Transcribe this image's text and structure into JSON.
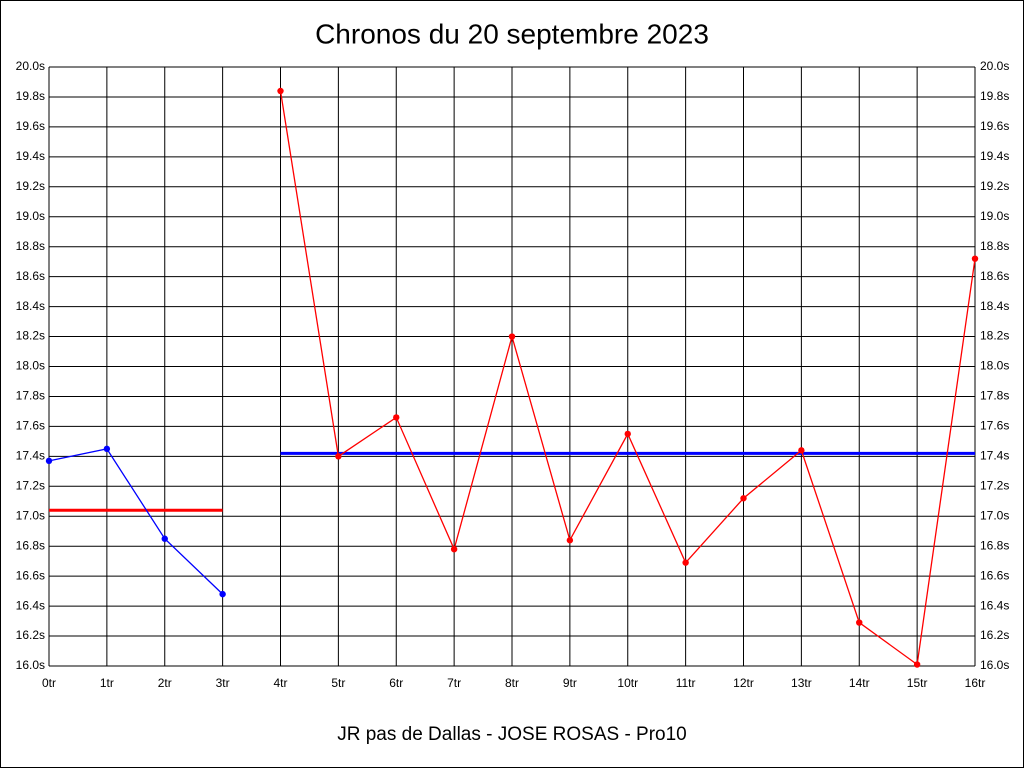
{
  "chart_data": {
    "type": "line",
    "title": "Chronos du 20 septembre 2023",
    "x_label": "JR pas de Dallas - JOSE ROSAS - Pro10",
    "categories": [
      "0tr",
      "1tr",
      "2tr",
      "3tr",
      "4tr",
      "5tr",
      "6tr",
      "7tr",
      "8tr",
      "9tr",
      "10tr",
      "11tr",
      "12tr",
      "13tr",
      "14tr",
      "15tr",
      "16tr"
    ],
    "series": [
      {
        "color": "#0000ff",
        "values": [
          17.37,
          17.45,
          16.85,
          16.48,
          null,
          null,
          null,
          null,
          null,
          null,
          null,
          null,
          null,
          null,
          null,
          null,
          null
        ]
      },
      {
        "color": "#ff0000",
        "values": [
          null,
          null,
          null,
          null,
          19.84,
          17.4,
          17.66,
          16.78,
          18.2,
          16.84,
          17.55,
          16.69,
          17.12,
          17.44,
          16.29,
          16.01,
          18.72
        ]
      }
    ],
    "reference_lines": [
      {
        "value": 17.04,
        "color": "#ff0000",
        "from": 0,
        "to": 3
      },
      {
        "value": 17.42,
        "color": "#0000ff",
        "from": 4,
        "to": 16
      }
    ],
    "ylim": [
      16.0,
      20.0
    ],
    "yticks": [
      {
        "value": 16.0,
        "label": "16.0s"
      },
      {
        "value": 16.2,
        "label": "16.2s"
      },
      {
        "value": 16.4,
        "label": "16.4s"
      },
      {
        "value": 16.6,
        "label": "16.6s"
      },
      {
        "value": 16.8,
        "label": "16.8s"
      },
      {
        "value": 17.0,
        "label": "17.0s"
      },
      {
        "value": 17.2,
        "label": "17.2s"
      },
      {
        "value": 17.4,
        "label": "17.4s"
      },
      {
        "value": 17.6,
        "label": "17.6s"
      },
      {
        "value": 17.8,
        "label": "17.8s"
      },
      {
        "value": 18.0,
        "label": "18.0s"
      },
      {
        "value": 18.2,
        "label": "18.2s"
      },
      {
        "value": 18.4,
        "label": "18.4s"
      },
      {
        "value": 18.6,
        "label": "18.6s"
      },
      {
        "value": 18.8,
        "label": "18.8s"
      },
      {
        "value": 19.0,
        "label": "19.0s"
      },
      {
        "value": 19.2,
        "label": "19.2s"
      },
      {
        "value": 19.4,
        "label": "19.4s"
      },
      {
        "value": 19.6,
        "label": "19.6s"
      },
      {
        "value": 19.8,
        "label": "19.8s"
      },
      {
        "value": 20.0,
        "label": "20.0s"
      }
    ],
    "grid": true,
    "right_axis_mirror": true
  }
}
